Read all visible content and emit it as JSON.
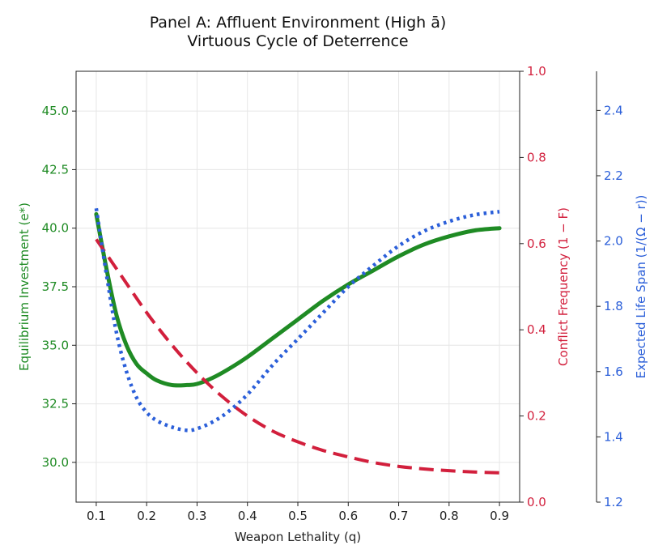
{
  "chart_data": {
    "type": "line",
    "title_line1": "Panel A: Affluent Environment (High ā)",
    "title_line2": "Virtuous Cycle of Deterrence",
    "xlabel": "Weapon Lethality (q)",
    "xlim": [
      0.06,
      0.94
    ],
    "x_ticks": [
      0.1,
      0.2,
      0.3,
      0.4,
      0.5,
      0.6,
      0.7,
      0.8,
      0.9
    ],
    "x_tick_labels": [
      "0.1",
      "0.2",
      "0.3",
      "0.4",
      "0.5",
      "0.6",
      "0.7",
      "0.8",
      "0.9"
    ],
    "grid": true,
    "axes": {
      "left": {
        "label": "Equilibrium Investment (e*)",
        "color": "#1f8b24",
        "ylim": [
          28.3,
          46.7
        ],
        "ticks": [
          30.0,
          32.5,
          35.0,
          37.5,
          40.0,
          42.5,
          45.0
        ],
        "tick_labels": [
          "30.0",
          "32.5",
          "35.0",
          "37.5",
          "40.0",
          "42.5",
          "45.0"
        ]
      },
      "right": {
        "label": "Conflict Frequency (1 − F)",
        "color": "#d21f3c",
        "ylim": [
          0.0,
          1.0
        ],
        "ticks": [
          0.0,
          0.2,
          0.4,
          0.6,
          0.8,
          1.0
        ],
        "tick_labels": [
          "0.0",
          "0.2",
          "0.4",
          "0.6",
          "0.8",
          "1.0"
        ]
      },
      "far_right": {
        "label": "Expected Life Span (1/(Ω − r))",
        "color": "#2b5fd9",
        "ylim": [
          1.2,
          2.52
        ],
        "ticks": [
          1.2,
          1.4,
          1.6,
          1.8,
          2.0,
          2.2,
          2.4
        ],
        "tick_labels": [
          "1.2",
          "1.4",
          "1.6",
          "1.8",
          "2.0",
          "2.2",
          "2.4"
        ]
      }
    },
    "series": [
      {
        "name": "Equilibrium Investment",
        "axis": "left",
        "style": "solid",
        "color": "#1f8b24",
        "x": [
          0.1,
          0.12,
          0.14,
          0.16,
          0.18,
          0.2,
          0.22,
          0.25,
          0.28,
          0.3,
          0.33,
          0.36,
          0.4,
          0.45,
          0.5,
          0.55,
          0.6,
          0.65,
          0.7,
          0.75,
          0.8,
          0.85,
          0.9
        ],
        "y": [
          40.6,
          38.3,
          36.3,
          35.0,
          34.2,
          33.8,
          33.5,
          33.3,
          33.3,
          33.35,
          33.6,
          33.95,
          34.5,
          35.3,
          36.1,
          36.9,
          37.6,
          38.2,
          38.8,
          39.3,
          39.65,
          39.9,
          40.0
        ]
      },
      {
        "name": "Conflict Frequency",
        "axis": "right",
        "style": "dashed",
        "color": "#d21f3c",
        "x": [
          0.1,
          0.15,
          0.2,
          0.25,
          0.3,
          0.35,
          0.4,
          0.45,
          0.5,
          0.55,
          0.6,
          0.65,
          0.7,
          0.75,
          0.8,
          0.85,
          0.9
        ],
        "y": [
          0.61,
          0.525,
          0.44,
          0.365,
          0.3,
          0.245,
          0.2,
          0.165,
          0.14,
          0.12,
          0.105,
          0.092,
          0.083,
          0.077,
          0.073,
          0.07,
          0.068
        ]
      },
      {
        "name": "Expected Life Span",
        "axis": "far_right",
        "style": "dotted",
        "color": "#2b5fd9",
        "x": [
          0.1,
          0.12,
          0.14,
          0.16,
          0.18,
          0.2,
          0.22,
          0.25,
          0.28,
          0.3,
          0.33,
          0.36,
          0.4,
          0.45,
          0.5,
          0.55,
          0.6,
          0.65,
          0.7,
          0.75,
          0.8,
          0.85,
          0.9
        ],
        "y": [
          2.1,
          1.9,
          1.72,
          1.6,
          1.52,
          1.475,
          1.45,
          1.43,
          1.42,
          1.425,
          1.445,
          1.475,
          1.53,
          1.62,
          1.7,
          1.78,
          1.86,
          1.925,
          1.985,
          2.03,
          2.06,
          2.08,
          2.09
        ]
      }
    ]
  }
}
